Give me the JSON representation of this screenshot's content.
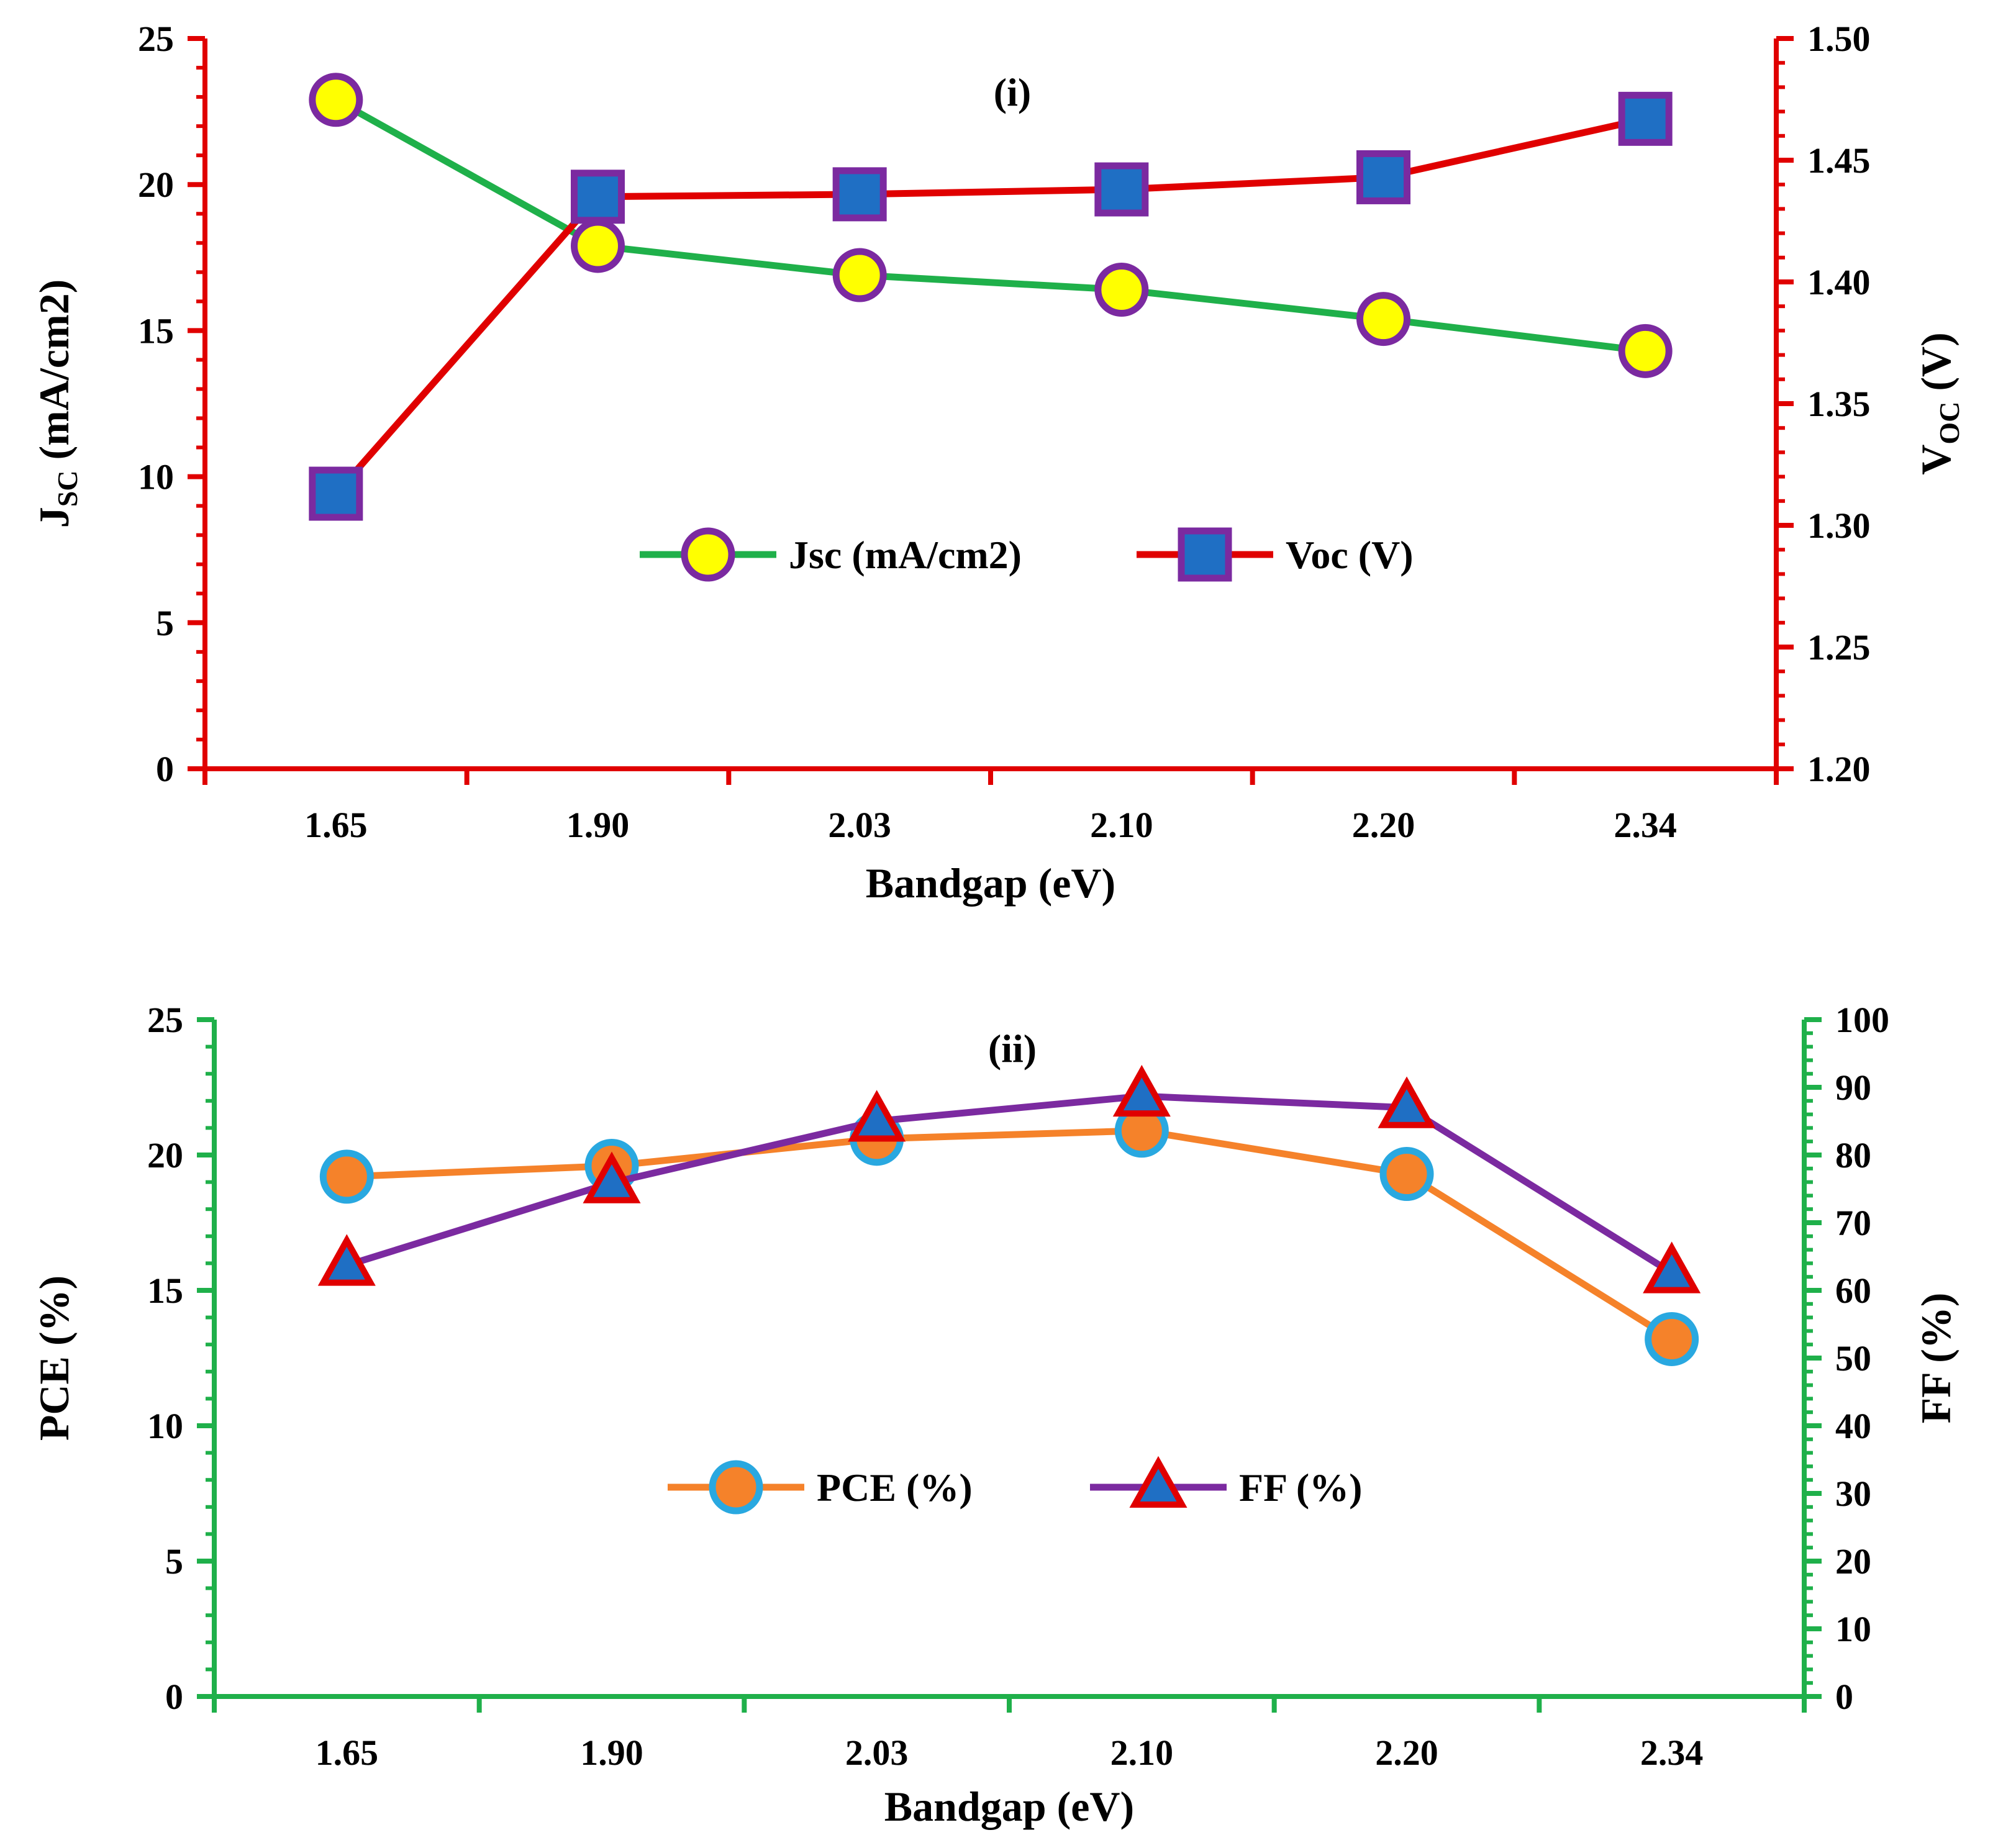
{
  "chart_data": [
    {
      "type": "line",
      "panel_label": "(i)",
      "categories": [
        "1.65",
        "1.90",
        "2.03",
        "2.10",
        "2.20",
        "2.34"
      ],
      "xlabel": "Bandgap (eV)",
      "ylabel_left": {
        "main": "J",
        "sub": "SC",
        "rest": " (mA/cm2)"
      },
      "ylabel_right": {
        "main": "V",
        "sub": "OC",
        "rest": " (V)"
      },
      "y_left": {
        "lim": [
          0,
          25
        ],
        "major": 5,
        "minor": 1,
        "ticks": [
          "0",
          "5",
          "10",
          "15",
          "20",
          "25"
        ]
      },
      "y_right": {
        "lim": [
          1.2,
          1.5
        ],
        "major": 0.05,
        "minor": 0.01,
        "ticks": [
          "1.20",
          "1.25",
          "1.30",
          "1.35",
          "1.40",
          "1.45",
          "1.50"
        ]
      },
      "axis_color": "#e00000",
      "grid": false,
      "legend": "center",
      "series": [
        {
          "name": "Jsc (mA/cm2)",
          "axis": "left",
          "values": [
            22.9,
            17.9,
            16.9,
            16.4,
            15.4,
            14.3
          ],
          "line_color": "#1fb04a",
          "marker": "circle",
          "marker_fill": "#ffff00",
          "marker_stroke": "#7b2aa0"
        },
        {
          "name": "Voc (V)",
          "axis": "right",
          "values": [
            1.313,
            1.435,
            1.436,
            1.438,
            1.443,
            1.467
          ],
          "line_color": "#e00000",
          "marker": "square",
          "marker_fill": "#1f6fc4",
          "marker_stroke": "#7b2aa0"
        }
      ]
    },
    {
      "type": "line",
      "panel_label": "(ii)",
      "categories": [
        "1.65",
        "1.90",
        "2.03",
        "2.10",
        "2.20",
        "2.34"
      ],
      "xlabel": "Bandgap (eV)",
      "ylabel_left": {
        "main": "PCE (%)",
        "sub": "",
        "rest": ""
      },
      "ylabel_right": {
        "main": "FF (%)",
        "sub": "",
        "rest": ""
      },
      "y_left": {
        "lim": [
          0,
          25
        ],
        "major": 5,
        "minor": 1,
        "ticks": [
          "0",
          "5",
          "10",
          "15",
          "20",
          "25"
        ]
      },
      "y_right": {
        "lim": [
          0,
          100
        ],
        "major": 10,
        "minor": 2,
        "ticks": [
          "0",
          "10",
          "20",
          "30",
          "40",
          "50",
          "60",
          "70",
          "80",
          "90",
          "100"
        ]
      },
      "axis_color": "#1fb04a",
      "grid": false,
      "legend": "center",
      "series": [
        {
          "name": "PCE (%)",
          "axis": "left",
          "values": [
            19.2,
            19.6,
            20.6,
            20.9,
            19.3,
            13.2
          ],
          "line_color": "#f5822a",
          "marker": "circle",
          "marker_fill": "#f5822a",
          "marker_stroke": "#29a8e0"
        },
        {
          "name": "FF (%)",
          "axis": "right",
          "values": [
            63.7,
            75.9,
            85.0,
            88.7,
            87.0,
            62.6
          ],
          "line_color": "#7b2aa0",
          "marker": "triangle",
          "marker_fill": "#1f6fc4",
          "marker_stroke": "#e00000"
        }
      ]
    }
  ]
}
